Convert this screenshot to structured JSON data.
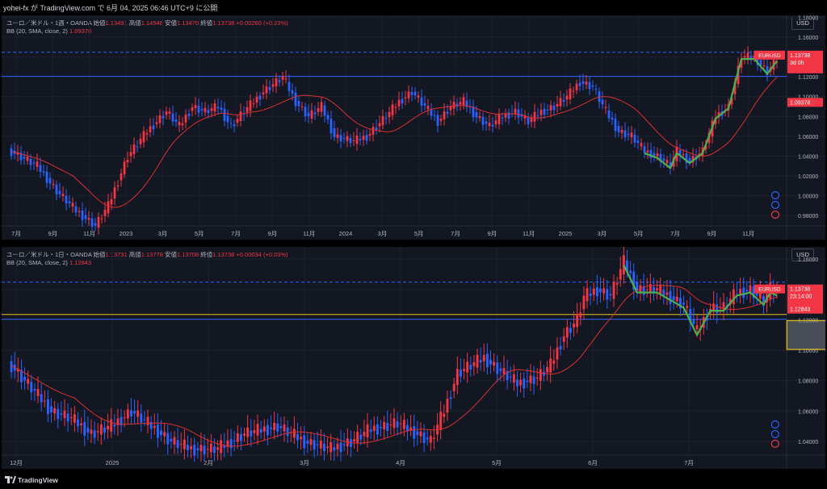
{
  "header": {
    "publish_text": "yohei-fx が TradingView.com で 6月 04, 2025 06:46 UTC+9 に公開"
  },
  "footer": {
    "brand": "TradingView"
  },
  "colors": {
    "up": "#f23645",
    "down": "#2962ff",
    "bb_mid": "#d93030",
    "overlay": "#4caf50",
    "hline": "#2962ff",
    "yellow": "#e8c41c"
  },
  "chart_data": [
    {
      "type": "candlestick",
      "title": "ユーロ／米ドル・1週・OANDA",
      "ohlc": {
        "open_label": "始値",
        "open": "1.13491",
        "high_label": "高値",
        "high": "1.14548",
        "low_label": "安値",
        "low": "1.13470",
        "close_label": "終値",
        "close": "1.13738",
        "change": "+0.00260 (+0.23%)"
      },
      "indicator": {
        "label": "BB (20, SMA, close, 2)",
        "value": "1.09378"
      },
      "currency": "USD",
      "symbol_tag": "EURUSD",
      "price_tag": "1.13738",
      "countdown": "3d 0h",
      "bb_tag": "1.09378",
      "y_ticks": [
        "1.18000",
        "1.16000",
        "1.14000",
        "1.12000",
        "1.10000",
        "1.08000",
        "1.06000",
        "1.04000",
        "1.02000",
        "1.00000",
        "0.98000"
      ],
      "ylim": [
        0.972,
        1.182
      ],
      "x_ticks": [
        "7月",
        "9月",
        "11月",
        "2023",
        "3月",
        "5月",
        "7月",
        "9月",
        "11月",
        "2024",
        "3月",
        "5月",
        "7月",
        "9月",
        "11月",
        "2025",
        "3月",
        "5月",
        "7月",
        "9月",
        "11月"
      ],
      "hlines": [
        1.1448,
        1.1204
      ],
      "anchors": [
        [
          0,
          1.045
        ],
        [
          8,
          1.03
        ],
        [
          14,
          1.005
        ],
        [
          20,
          0.985
        ],
        [
          26,
          0.97
        ],
        [
          30,
          0.99
        ],
        [
          36,
          1.04
        ],
        [
          42,
          1.065
        ],
        [
          48,
          1.085
        ],
        [
          52,
          1.07
        ],
        [
          56,
          1.09
        ],
        [
          60,
          1.085
        ],
        [
          64,
          1.09
        ],
        [
          68,
          1.07
        ],
        [
          72,
          1.085
        ],
        [
          78,
          1.105
        ],
        [
          84,
          1.12
        ],
        [
          88,
          1.095
        ],
        [
          92,
          1.08
        ],
        [
          96,
          1.09
        ],
        [
          100,
          1.06
        ],
        [
          106,
          1.055
        ],
        [
          110,
          1.06
        ],
        [
          116,
          1.08
        ],
        [
          120,
          1.095
        ],
        [
          124,
          1.105
        ],
        [
          128,
          1.09
        ],
        [
          132,
          1.075
        ],
        [
          136,
          1.09
        ],
        [
          140,
          1.095
        ],
        [
          144,
          1.08
        ],
        [
          148,
          1.07
        ],
        [
          152,
          1.08
        ],
        [
          156,
          1.085
        ],
        [
          160,
          1.075
        ],
        [
          164,
          1.085
        ],
        [
          168,
          1.09
        ],
        [
          172,
          1.1
        ],
        [
          176,
          1.115
        ],
        [
          180,
          1.11
        ],
        [
          184,
          1.085
        ],
        [
          188,
          1.065
        ],
        [
          192,
          1.06
        ],
        [
          196,
          1.045
        ],
        [
          200,
          1.04
        ],
        [
          204,
          1.03
        ],
        [
          206,
          1.045
        ],
        [
          210,
          1.035
        ],
        [
          214,
          1.045
        ],
        [
          218,
          1.08
        ],
        [
          222,
          1.09
        ],
        [
          226,
          1.14
        ],
        [
          230,
          1.14
        ],
        [
          234,
          1.125
        ],
        [
          237,
          1.138
        ]
      ]
    },
    {
      "type": "candlestick",
      "title": "ユーロ／米ドル・1日・OANDA",
      "ohlc": {
        "open_label": "始値",
        "open": "1.13731",
        "high_label": "高値",
        "high": "1.13778",
        "low_label": "安値",
        "low": "1.13708",
        "close_label": "終値",
        "close": "1.13738",
        "change": "+0.00034 (+0.03%)"
      },
      "indicator": {
        "label": "BB (20, SMA, close, 2)",
        "value": "1.12843"
      },
      "currency": "USD",
      "symbol_tag": "EURUSD",
      "price_tag": "1.13738",
      "countdown": "23:14:00",
      "bb_tag": "1.12843",
      "y_ticks": [
        "1.16000",
        "1.14000",
        "1.12000",
        "1.10000",
        "1.08000",
        "1.06000",
        "1.04000"
      ],
      "ylim": [
        1.032,
        1.168
      ],
      "x_ticks": [
        "12月",
        "2025",
        "2月",
        "3月",
        "4月",
        "5月",
        "6月",
        "7月"
      ],
      "hlines": [
        1.1448,
        1.1235,
        1.1204
      ],
      "rect": {
        "x0": 233,
        "x1": 254,
        "y0": 1.1195,
        "y1": 1.1005
      },
      "anchors": [
        [
          0,
          1.09
        ],
        [
          6,
          1.075
        ],
        [
          12,
          1.06
        ],
        [
          18,
          1.055
        ],
        [
          24,
          1.045
        ],
        [
          30,
          1.05
        ],
        [
          36,
          1.06
        ],
        [
          42,
          1.05
        ],
        [
          48,
          1.04
        ],
        [
          54,
          1.035
        ],
        [
          62,
          1.035
        ],
        [
          70,
          1.045
        ],
        [
          80,
          1.05
        ],
        [
          88,
          1.04
        ],
        [
          96,
          1.035
        ],
        [
          102,
          1.04
        ],
        [
          108,
          1.048
        ],
        [
          116,
          1.052
        ],
        [
          122,
          1.045
        ],
        [
          126,
          1.04
        ],
        [
          130,
          1.06
        ],
        [
          134,
          1.085
        ],
        [
          138,
          1.09
        ],
        [
          142,
          1.095
        ],
        [
          146,
          1.088
        ],
        [
          152,
          1.078
        ],
        [
          158,
          1.082
        ],
        [
          162,
          1.09
        ],
        [
          166,
          1.11
        ],
        [
          170,
          1.12
        ],
        [
          172,
          1.135
        ],
        [
          176,
          1.14
        ],
        [
          180,
          1.136
        ],
        [
          184,
          1.158
        ],
        [
          188,
          1.14
        ],
        [
          194,
          1.14
        ],
        [
          198,
          1.135
        ],
        [
          202,
          1.13
        ],
        [
          206,
          1.112
        ],
        [
          210,
          1.128
        ],
        [
          214,
          1.128
        ],
        [
          218,
          1.138
        ],
        [
          222,
          1.14
        ],
        [
          226,
          1.132
        ],
        [
          228,
          1.14
        ],
        [
          230,
          1.138
        ]
      ]
    }
  ]
}
